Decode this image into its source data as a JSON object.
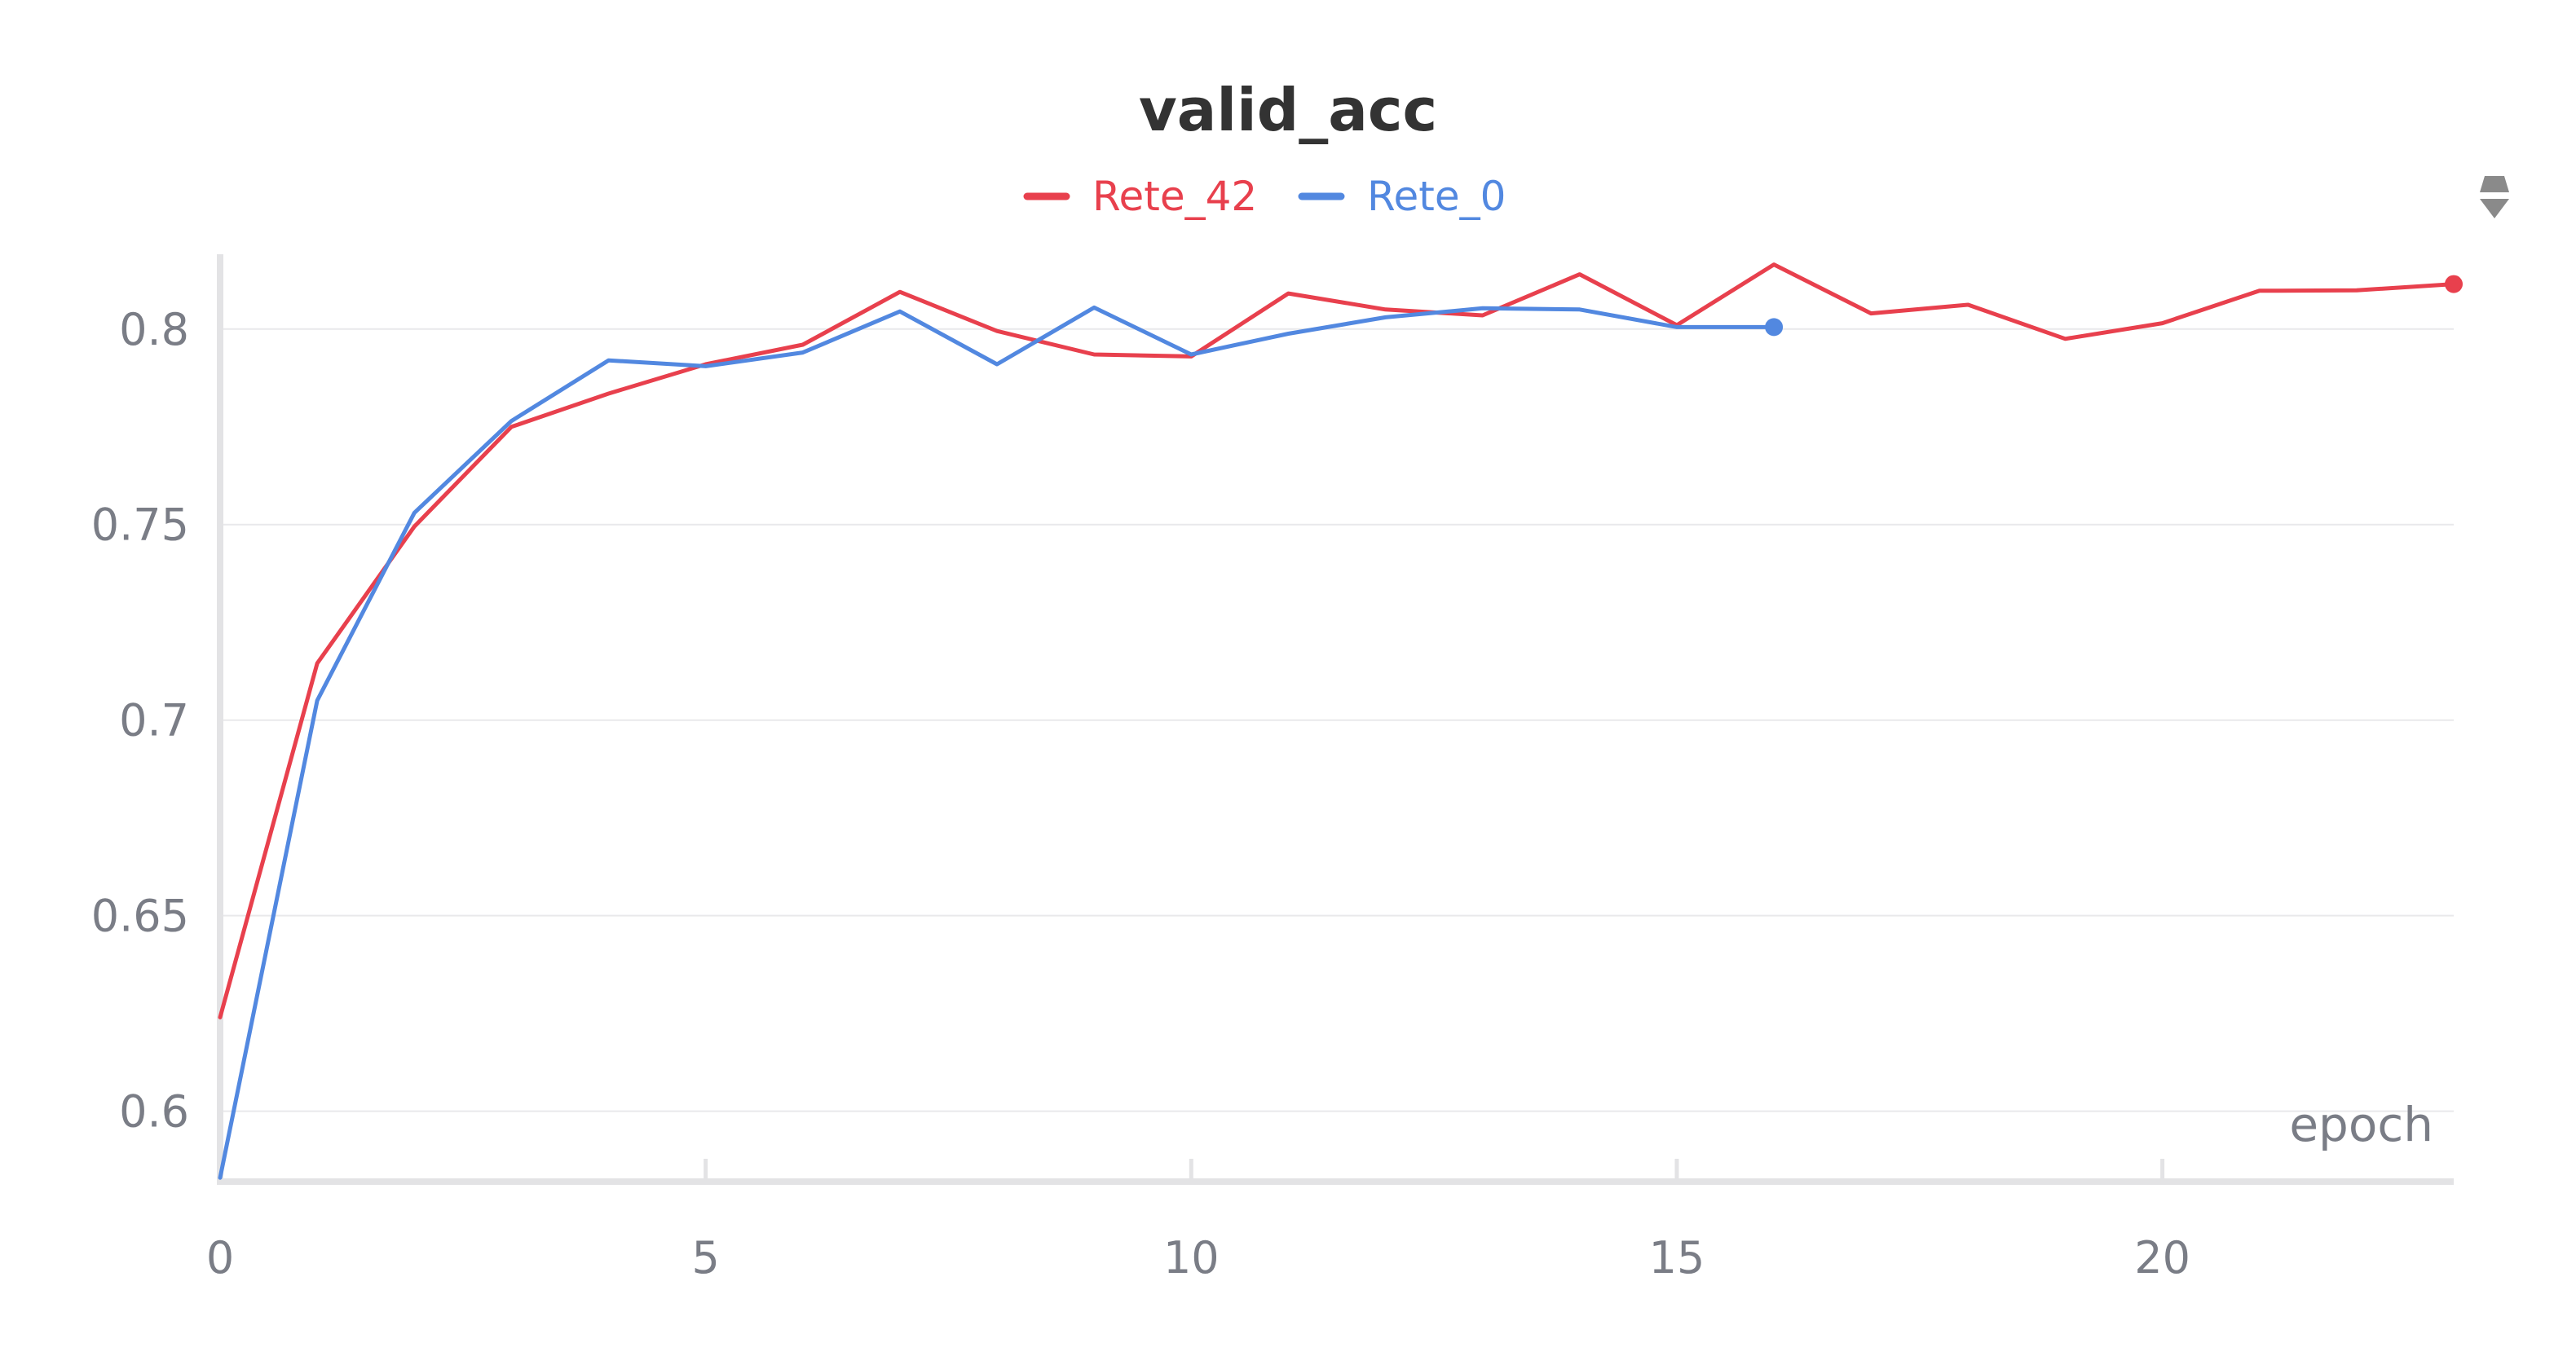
{
  "chart_data": {
    "type": "line",
    "title": "valid_acc",
    "xlabel": "epoch",
    "ylabel": "",
    "xlim": [
      0,
      23
    ],
    "ylim": [
      0.582,
      0.8185
    ],
    "xticks": [
      0,
      5,
      10,
      15,
      20
    ],
    "xtick_labels": [
      "0",
      "5",
      "10",
      "15",
      "20"
    ],
    "yticks": [
      0.6,
      0.65,
      0.7,
      0.75,
      0.8
    ],
    "ytick_labels": [
      "0.6",
      "0.65",
      "0.7",
      "0.75",
      "0.8"
    ],
    "grid": true,
    "legend_position": "top-center",
    "series": [
      {
        "name": "Rete_42",
        "color": "#e8404d",
        "x": [
          0,
          1,
          2,
          3,
          4,
          5,
          6,
          7,
          8,
          9,
          10,
          11,
          12,
          13,
          14,
          15,
          16,
          17,
          18,
          19,
          20,
          21,
          22,
          23
        ],
        "values": [
          0.624,
          0.7145,
          0.7495,
          0.775,
          0.7835,
          0.791,
          0.796,
          0.8095,
          0.7995,
          0.7935,
          0.793,
          0.8091,
          0.805,
          0.8035,
          0.814,
          0.801,
          0.8165,
          0.804,
          0.8062,
          0.7975,
          0.8015,
          0.8098,
          0.8099,
          0.8115
        ]
      },
      {
        "name": "Rete_0",
        "color": "#5288e0",
        "x": [
          0,
          1,
          2,
          3,
          4,
          5,
          6,
          7,
          8,
          9,
          10,
          11,
          12,
          13,
          14,
          15,
          16
        ],
        "values": [
          0.583,
          0.705,
          0.753,
          0.7765,
          0.792,
          0.7905,
          0.794,
          0.8045,
          0.791,
          0.8055,
          0.7935,
          0.7988,
          0.803,
          0.8053,
          0.805,
          0.8005,
          0.8005
        ]
      }
    ]
  }
}
